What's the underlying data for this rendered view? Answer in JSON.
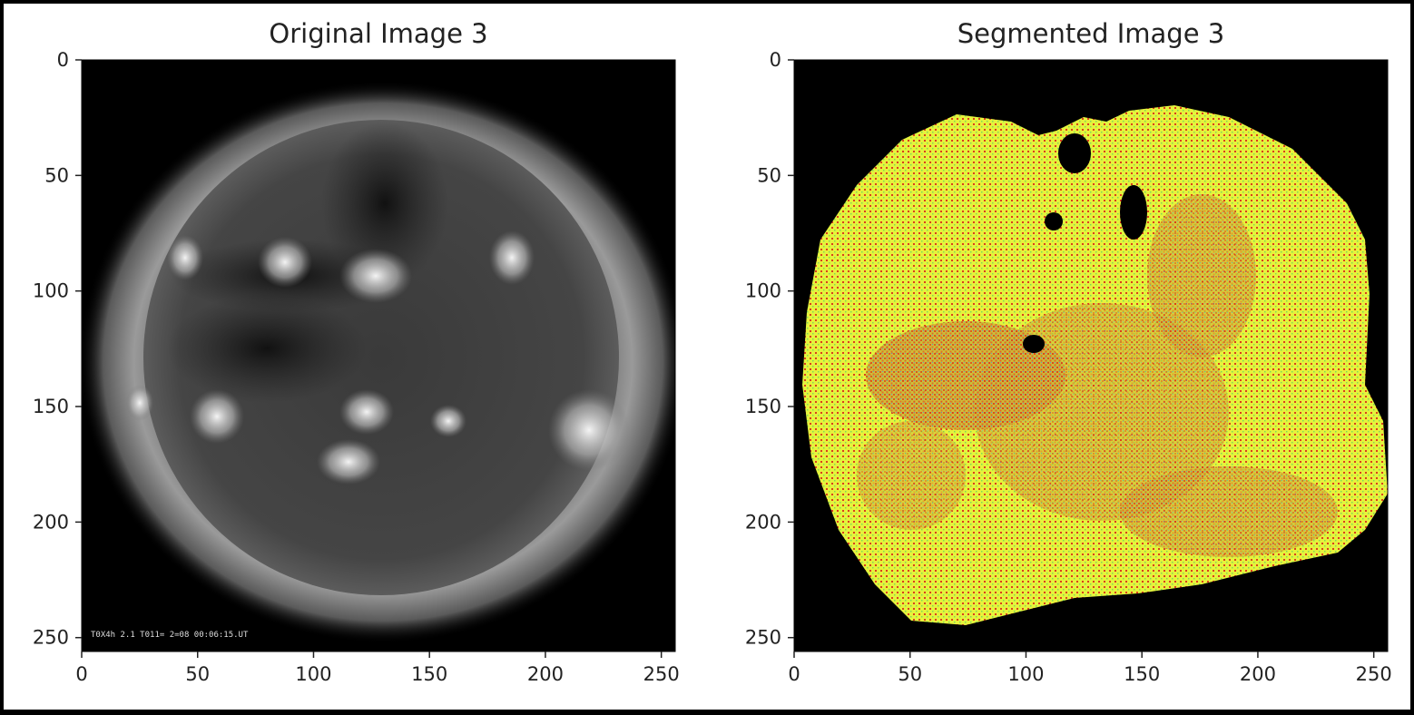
{
  "chart_data": [
    {
      "type": "image",
      "title": "Original Image 3",
      "xlim": [
        0,
        256
      ],
      "ylim": [
        256,
        0
      ],
      "xticks": [
        0,
        50,
        100,
        150,
        200,
        250
      ],
      "yticks": [
        0,
        50,
        100,
        150,
        200,
        250
      ],
      "overlay_text": "T0X4h  2.1   T011= 2=08 00:06:15.UT",
      "colormap": "gray",
      "description": "Solar disk in EUV, grayscale"
    },
    {
      "type": "image",
      "title": "Segmented Image 3",
      "xlim": [
        0,
        256
      ],
      "ylim": [
        256,
        0
      ],
      "xticks": [
        0,
        50,
        100,
        150,
        200,
        250
      ],
      "yticks": [
        0,
        50,
        100,
        150,
        200,
        250
      ],
      "colors": {
        "background": "#000000",
        "region_primary": "#e6f23c",
        "region_secondary": "#d9401e",
        "speckle": "#4a7bd6"
      }
    }
  ]
}
